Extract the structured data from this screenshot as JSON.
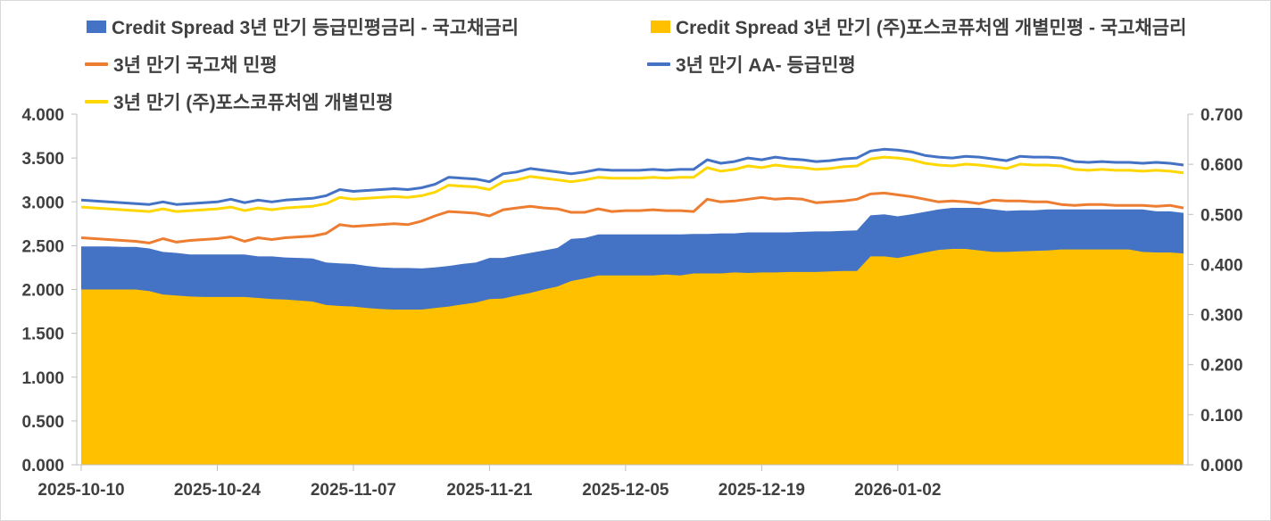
{
  "chart_data": {
    "type": "area",
    "title": "",
    "legend": {
      "placement": "top",
      "entries": [
        {
          "key": "spread_grade",
          "label": "Credit Spread 3년 만기 등급민평금리 - 국고채금리",
          "kind": "area",
          "color": "#4472C4"
        },
        {
          "key": "spread_posco",
          "label": "Credit Spread 3년 만기 (주)포스코퓨처엠 개별민평 - 국고채금리",
          "kind": "area",
          "color": "#FFC000"
        },
        {
          "key": "ktb",
          "label": "3년 만기 국고채 민평",
          "kind": "line",
          "color": "#ED7D31"
        },
        {
          "key": "aa_minus",
          "label": "3년 만기 AA- 등급민평",
          "kind": "line",
          "color": "#4472C4"
        },
        {
          "key": "posco",
          "label": "3년 만기 (주)포스코퓨처엠 개별민평",
          "kind": "line",
          "color": "#FFD700"
        }
      ]
    },
    "left_axis": {
      "min": 0,
      "max": 4,
      "ticks": [
        "0.000",
        "0.500",
        "1.000",
        "1.500",
        "2.000",
        "2.500",
        "3.000",
        "3.500",
        "4.000"
      ]
    },
    "right_axis": {
      "min": 0,
      "max": 0.7,
      "ticks": [
        "0.000",
        "0.100",
        "0.200",
        "0.300",
        "0.400",
        "0.500",
        "0.600",
        "0.700"
      ]
    },
    "x_tick_labels": [
      "2025-10-10",
      "2025-10-24",
      "2025-11-07",
      "2025-11-21",
      "2025-12-05",
      "2025-12-19",
      "2026-01-02"
    ],
    "x_tick_index": [
      0,
      10,
      20,
      30,
      40,
      50,
      60
    ],
    "series": [
      {
        "name": "3년 만기 AA- 등급민평",
        "axis": "left",
        "color": "#4472C4",
        "values": [
          3.02,
          3.01,
          3.0,
          2.99,
          2.98,
          2.97,
          3.0,
          2.97,
          2.98,
          2.99,
          3.0,
          3.03,
          2.99,
          3.02,
          3.0,
          3.02,
          3.03,
          3.04,
          3.07,
          3.14,
          3.12,
          3.13,
          3.14,
          3.15,
          3.14,
          3.16,
          3.2,
          3.28,
          3.27,
          3.26,
          3.23,
          3.32,
          3.34,
          3.38,
          3.36,
          3.34,
          3.32,
          3.34,
          3.37,
          3.36,
          3.36,
          3.36,
          3.37,
          3.36,
          3.37,
          3.37,
          3.48,
          3.44,
          3.46,
          3.5,
          3.48,
          3.51,
          3.49,
          3.48,
          3.46,
          3.47,
          3.49,
          3.5,
          3.58,
          3.6,
          3.59,
          3.57,
          3.53,
          3.51,
          3.5,
          3.52,
          3.51,
          3.49,
          3.47,
          3.52,
          3.51,
          3.51,
          3.5,
          3.46,
          3.45,
          3.46,
          3.45,
          3.45,
          3.44,
          3.45,
          3.44,
          3.42
        ]
      },
      {
        "name": "3년 만기 (주)포스코퓨처엠 개별민평",
        "axis": "left",
        "color": "#FFD700",
        "values": [
          2.94,
          2.93,
          2.92,
          2.91,
          2.9,
          2.89,
          2.92,
          2.89,
          2.9,
          2.91,
          2.92,
          2.94,
          2.9,
          2.93,
          2.91,
          2.93,
          2.94,
          2.95,
          2.98,
          3.05,
          3.03,
          3.04,
          3.05,
          3.06,
          3.05,
          3.07,
          3.11,
          3.19,
          3.18,
          3.17,
          3.14,
          3.23,
          3.25,
          3.29,
          3.27,
          3.25,
          3.23,
          3.25,
          3.28,
          3.27,
          3.27,
          3.27,
          3.28,
          3.27,
          3.28,
          3.28,
          3.39,
          3.35,
          3.37,
          3.41,
          3.39,
          3.42,
          3.4,
          3.39,
          3.37,
          3.38,
          3.4,
          3.41,
          3.49,
          3.51,
          3.5,
          3.48,
          3.44,
          3.42,
          3.41,
          3.43,
          3.42,
          3.4,
          3.38,
          3.43,
          3.42,
          3.42,
          3.41,
          3.37,
          3.36,
          3.37,
          3.36,
          3.36,
          3.35,
          3.36,
          3.35,
          3.33
        ]
      },
      {
        "name": "3년 만기 국고채 민평",
        "axis": "left",
        "color": "#ED7D31",
        "values": [
          2.59,
          2.58,
          2.57,
          2.56,
          2.55,
          2.53,
          2.58,
          2.54,
          2.56,
          2.57,
          2.58,
          2.6,
          2.55,
          2.59,
          2.57,
          2.59,
          2.6,
          2.61,
          2.64,
          2.74,
          2.72,
          2.73,
          2.74,
          2.75,
          2.74,
          2.78,
          2.84,
          2.89,
          2.88,
          2.87,
          2.84,
          2.91,
          2.93,
          2.95,
          2.93,
          2.92,
          2.88,
          2.88,
          2.92,
          2.89,
          2.9,
          2.9,
          2.91,
          2.9,
          2.9,
          2.89,
          3.03,
          3.0,
          3.01,
          3.03,
          3.05,
          3.03,
          3.04,
          3.03,
          2.99,
          3.0,
          3.01,
          3.03,
          3.09,
          3.1,
          3.08,
          3.06,
          3.03,
          3.0,
          3.01,
          3.0,
          2.98,
          3.02,
          3.01,
          3.01,
          3.0,
          3.0,
          2.97,
          2.96,
          2.97,
          2.97,
          2.96,
          2.96,
          2.96,
          2.95,
          2.96,
          2.93
        ]
      },
      {
        "name": "Credit Spread 3년 만기 등급민평금리 - 국고채금리",
        "axis": "right",
        "kind": "area",
        "color": "#4472C4",
        "values": [
          0.436,
          0.436,
          0.436,
          0.435,
          0.435,
          0.432,
          0.425,
          0.423,
          0.42,
          0.42,
          0.42,
          0.42,
          0.42,
          0.416,
          0.416,
          0.414,
          0.413,
          0.412,
          0.404,
          0.402,
          0.401,
          0.397,
          0.394,
          0.393,
          0.393,
          0.392,
          0.394,
          0.397,
          0.401,
          0.404,
          0.413,
          0.413,
          0.418,
          0.423,
          0.428,
          0.433,
          0.451,
          0.453,
          0.46,
          0.46,
          0.46,
          0.46,
          0.46,
          0.46,
          0.46,
          0.461,
          0.461,
          0.462,
          0.462,
          0.464,
          0.464,
          0.464,
          0.464,
          0.465,
          0.466,
          0.466,
          0.467,
          0.468,
          0.498,
          0.5,
          0.496,
          0.5,
          0.505,
          0.51,
          0.513,
          0.513,
          0.513,
          0.51,
          0.507,
          0.508,
          0.508,
          0.51,
          0.51,
          0.51,
          0.51,
          0.51,
          0.51,
          0.51,
          0.51,
          0.506,
          0.506,
          0.503
        ]
      },
      {
        "name": "Credit Spread 3년 만기 (주)포스코퓨처엠 개별민평 - 국고채금리",
        "axis": "right",
        "kind": "area",
        "color": "#FFC000",
        "values": [
          0.35,
          0.35,
          0.35,
          0.35,
          0.35,
          0.347,
          0.34,
          0.338,
          0.336,
          0.335,
          0.335,
          0.335,
          0.335,
          0.333,
          0.331,
          0.33,
          0.328,
          0.326,
          0.319,
          0.317,
          0.316,
          0.313,
          0.311,
          0.31,
          0.31,
          0.31,
          0.313,
          0.316,
          0.32,
          0.324,
          0.331,
          0.332,
          0.338,
          0.343,
          0.35,
          0.356,
          0.367,
          0.372,
          0.378,
          0.378,
          0.378,
          0.378,
          0.378,
          0.38,
          0.378,
          0.382,
          0.382,
          0.382,
          0.384,
          0.383,
          0.384,
          0.384,
          0.385,
          0.385,
          0.385,
          0.386,
          0.387,
          0.387,
          0.416,
          0.416,
          0.413,
          0.418,
          0.424,
          0.429,
          0.431,
          0.431,
          0.428,
          0.425,
          0.425,
          0.426,
          0.427,
          0.428,
          0.43,
          0.43,
          0.43,
          0.43,
          0.43,
          0.43,
          0.425,
          0.424,
          0.424,
          0.422
        ]
      }
    ]
  }
}
